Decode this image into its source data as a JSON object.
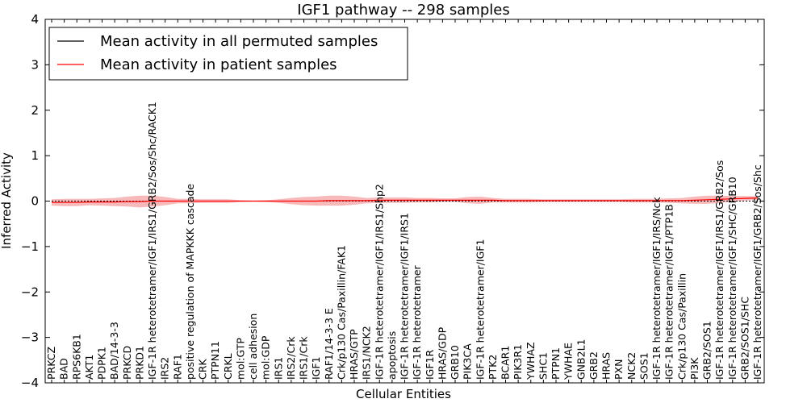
{
  "chart_data": {
    "type": "line",
    "title": "IGF1 pathway -- 298 samples",
    "xlabel": "Cellular Entities",
    "ylabel": "Inferred Activity",
    "ylim": [
      -4,
      4
    ],
    "yticks": [
      "−4",
      "−3",
      "−2",
      "−1",
      "0",
      "1",
      "2",
      "3",
      "4"
    ],
    "legend": {
      "placement": "top-left",
      "entries": [
        {
          "label": "Mean activity in all permuted samples",
          "color": "#000000"
        },
        {
          "label": "Mean activity in patient samples",
          "color": "#ff0000"
        }
      ]
    },
    "categories": [
      "PRKCZ",
      "BAD",
      "RPS6KB1",
      "AKT1",
      "PDPK1",
      "BAD/14-3-3",
      "PRKCD",
      "PRKD1",
      "IGF-1R heterotetramer/IGF1/IRS1/GRB2/Sos/Shc/RACK1",
      "IRS2",
      "RAF1",
      "positive regulation of MAPKKK cascade",
      "CRK",
      "PTPN11",
      "CRKL",
      "mol:GTP",
      "cell adhesion",
      "mol:GDP",
      "IRS1",
      "IRS2/Crk",
      "IRS1/Crk",
      "IGF1",
      "RAF1/14-3-3 E",
      "Crk/p130 Cas/Paxillin/FAK1",
      "HRAS/GTP",
      "IRS1/NCK2",
      "IGF-1R heterotetramer/IGF1/IRS1/Shp2",
      "apoptosis",
      "IGF-1R heterotetramer/IGF1/IRS1",
      "IGF-1R heterotetramer",
      "IGF1R",
      "HRAS/GDP",
      "GRB10",
      "PIK3CA",
      "IGF-1R heterotetramer/IGF1",
      "PTK2",
      "BCAR1",
      "PIK3R1",
      "YWHAZ",
      "SHC1",
      "PTPN1",
      "YWHAE",
      "GNB2L1",
      "GRB2",
      "HRAS",
      "PXN",
      "NCK2",
      "SOS1",
      "IGF-1R heterotetramer/IGF1/IRS/Nck",
      "IGF-1R heterotetramer/IGF1/PTP1B",
      "Crk/p130 Cas/Paxillin",
      "PI3K",
      "GRB2/SOS1",
      "IGF-1R heterotetramer/IGF1/IRS1/GRB2/Sos",
      "IGF-1R heterotetramer/IGF1/SHC/GRB10",
      "GRB2/SOS1/SHC",
      "IGF-1R heterotetramer/IGF1/GRB2/Sos/Shc"
    ],
    "series": [
      {
        "name": "Mean activity in all permuted samples",
        "color": "#000000",
        "values": [
          0,
          0,
          0,
          0,
          0,
          0,
          0,
          0,
          0,
          0,
          0,
          0,
          0,
          0,
          0,
          0,
          0,
          0,
          0,
          0,
          0,
          0,
          0,
          0,
          0,
          0,
          0,
          0,
          0,
          0,
          0,
          0,
          0,
          0,
          0,
          0,
          0,
          0,
          0,
          0,
          0,
          0,
          0,
          0,
          0,
          0,
          0,
          0,
          0,
          0,
          0,
          0,
          0,
          0,
          0,
          0,
          0
        ]
      },
      {
        "name": "Mean activity in patient samples",
        "color": "#ff0000",
        "values": [
          -0.03,
          -0.03,
          -0.03,
          -0.02,
          -0.02,
          -0.02,
          -0.01,
          -0.01,
          0.0,
          0.0,
          0.0,
          0.0,
          0.0,
          0.0,
          0.0,
          0.0,
          0.0,
          0.0,
          0.0,
          0.0,
          0.0,
          0.0,
          0.01,
          0.01,
          0.01,
          0.01,
          0.02,
          0.02,
          0.02,
          0.02,
          0.02,
          0.02,
          0.02,
          0.02,
          0.02,
          0.02,
          0.01,
          0.01,
          0.01,
          0.01,
          0.01,
          0.01,
          0.01,
          0.01,
          0.01,
          0.01,
          0.01,
          0.01,
          0.01,
          0.01,
          0.01,
          0.02,
          0.03,
          0.04,
          0.05,
          0.06,
          0.07
        ],
        "band": [
          0.07,
          0.08,
          0.08,
          0.07,
          0.08,
          0.09,
          0.11,
          0.13,
          0.12,
          0.09,
          0.05,
          0.05,
          0.04,
          0.04,
          0.04,
          0.02,
          0.01,
          0.02,
          0.04,
          0.07,
          0.09,
          0.1,
          0.11,
          0.11,
          0.09,
          0.06,
          0.06,
          0.06,
          0.06,
          0.05,
          0.05,
          0.04,
          0.04,
          0.07,
          0.08,
          0.05,
          0.04,
          0.04,
          0.04,
          0.03,
          0.03,
          0.03,
          0.03,
          0.03,
          0.03,
          0.03,
          0.04,
          0.04,
          0.04,
          0.05,
          0.06,
          0.08,
          0.09,
          0.08,
          0.06,
          0.05,
          0.04
        ]
      }
    ]
  }
}
